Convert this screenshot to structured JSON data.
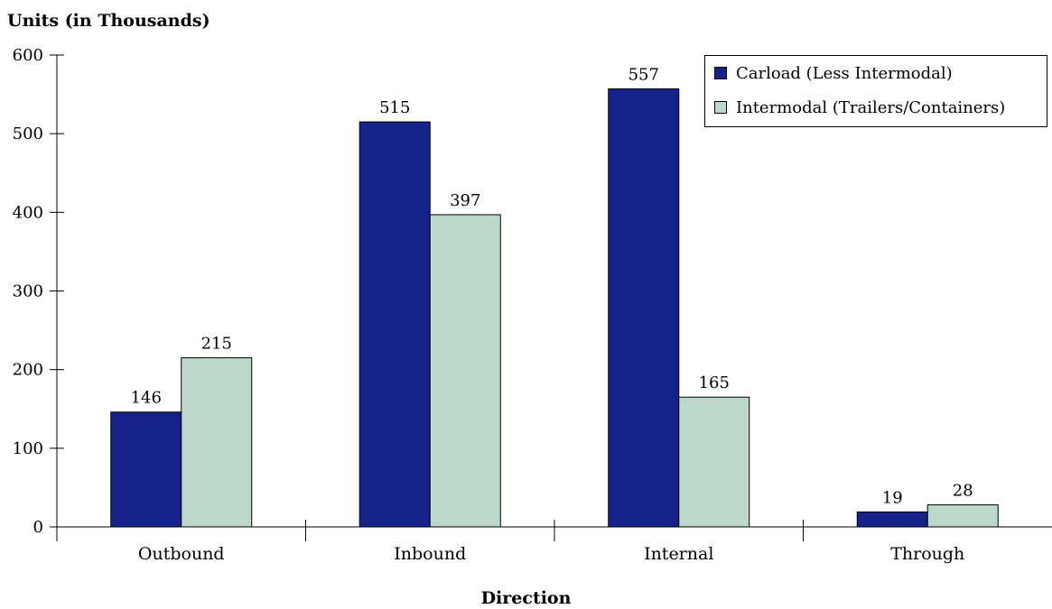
{
  "chart_data": {
    "type": "bar",
    "title": "",
    "ylabel": "Units (in Thousands)",
    "xlabel": "Direction",
    "categories": [
      "Outbound",
      "Inbound",
      "Internal",
      "Through"
    ],
    "ylim": [
      0,
      600
    ],
    "yticks": [
      0,
      100,
      200,
      300,
      400,
      500,
      600
    ],
    "grid": false,
    "legend_position": "top-right",
    "series": [
      {
        "name": "Carload (Less Intermodal)",
        "values": [
          146,
          515,
          557,
          19
        ],
        "color": "#14228a"
      },
      {
        "name": "Intermodal (Trailers/Containers)",
        "values": [
          215,
          397,
          165,
          28
        ],
        "color": "#bcd8cc"
      }
    ]
  }
}
